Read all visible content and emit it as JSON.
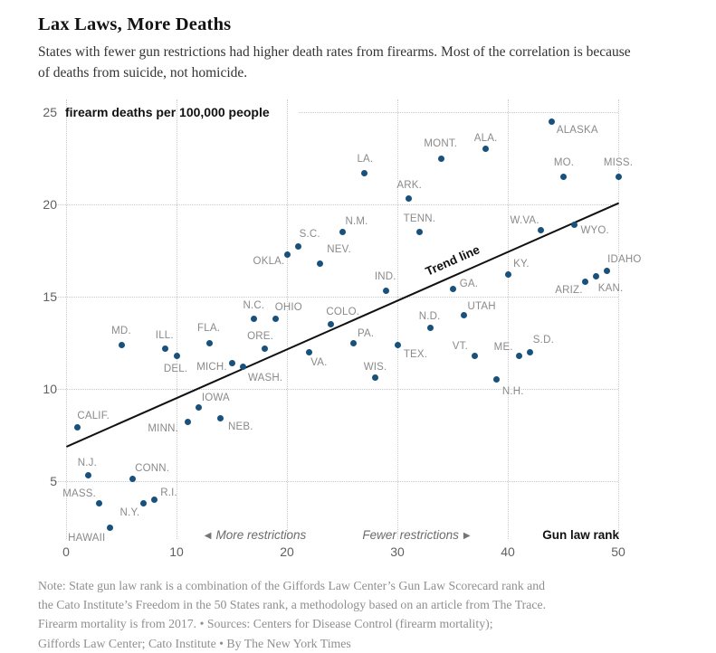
{
  "header": {
    "title": "Lax Laws, More Deaths",
    "subtitle": "States with fewer gun restrictions had higher death rates from firearms. Most of the correlation is because of deaths from suicide, not homicide."
  },
  "chart_data": {
    "type": "scatter",
    "title": "Lax Laws, More Deaths",
    "xlabel": "Gun law rank",
    "ylabel": "firearm deaths per 100,000 people",
    "xlim": [
      0,
      50
    ],
    "ylim": [
      1.9,
      25
    ],
    "x_ticks": [
      0,
      10,
      20,
      30,
      40,
      50
    ],
    "y_ticks": [
      5,
      10,
      15,
      20,
      25
    ],
    "grid": "dotted",
    "annotations": {
      "trend_label": "Trend line",
      "more_restrictions": "More restrictions",
      "fewer_restrictions": "Fewer restrictions",
      "left_arrow": "◀",
      "right_arrow": "▶"
    },
    "trendline": {
      "x": [
        0,
        50
      ],
      "y": [
        6.9,
        20.1
      ]
    },
    "points": [
      {
        "state": "CALIF.",
        "rank": 1,
        "rate": 7.9,
        "label_offset": [
          18,
          -13
        ]
      },
      {
        "state": "N.J.",
        "rank": 2,
        "rate": 5.3,
        "label_offset": [
          -1,
          -14
        ]
      },
      {
        "state": "MASS.",
        "rank": 3,
        "rate": 3.8,
        "label_offset": [
          -22,
          -10
        ]
      },
      {
        "state": "HAWAII",
        "rank": 4,
        "rate": 2.5,
        "label_offset": [
          -26,
          12
        ]
      },
      {
        "state": "MD.",
        "rank": 5,
        "rate": 12.4,
        "label_offset": [
          0,
          -15
        ]
      },
      {
        "state": "CONN.",
        "rank": 6,
        "rate": 5.1,
        "label_offset": [
          22,
          -12
        ]
      },
      {
        "state": "N.Y.",
        "rank": 7,
        "rate": 3.8,
        "label_offset": [
          -15,
          11
        ]
      },
      {
        "state": "R.I.",
        "rank": 8,
        "rate": 4.0,
        "label_offset": [
          16,
          -7
        ]
      },
      {
        "state": "ILL.",
        "rank": 9,
        "rate": 12.2,
        "label_offset": [
          -1,
          -14
        ]
      },
      {
        "state": "DEL.",
        "rank": 10,
        "rate": 11.8,
        "label_offset": [
          -1,
          15
        ]
      },
      {
        "state": "MINN.",
        "rank": 11,
        "rate": 8.2,
        "label_offset": [
          -27,
          7
        ]
      },
      {
        "state": "IOWA",
        "rank": 12,
        "rate": 9.0,
        "label_offset": [
          19,
          -10
        ]
      },
      {
        "state": "FLA.",
        "rank": 13,
        "rate": 12.5,
        "label_offset": [
          -1,
          -16
        ]
      },
      {
        "state": "NEB.",
        "rank": 14,
        "rate": 8.4,
        "label_offset": [
          22,
          9
        ]
      },
      {
        "state": "MICH.",
        "rank": 15,
        "rate": 11.4,
        "label_offset": [
          -22,
          5
        ]
      },
      {
        "state": "WASH.",
        "rank": 16,
        "rate": 11.2,
        "label_offset": [
          25,
          12
        ]
      },
      {
        "state": "N.C.",
        "rank": 17,
        "rate": 13.8,
        "label_offset": [
          0,
          -14
        ]
      },
      {
        "state": "ORE.",
        "rank": 18,
        "rate": 12.2,
        "label_offset": [
          -5,
          -13
        ]
      },
      {
        "state": "OHIO",
        "rank": 19,
        "rate": 13.8,
        "label_offset": [
          14,
          -12
        ]
      },
      {
        "state": "OKLA.",
        "rank": 20,
        "rate": 17.3,
        "label_offset": [
          -20,
          8
        ]
      },
      {
        "state": "S.C.",
        "rank": 21,
        "rate": 17.7,
        "label_offset": [
          13,
          -14
        ]
      },
      {
        "state": "VA.",
        "rank": 22,
        "rate": 12.0,
        "label_offset": [
          11,
          12
        ]
      },
      {
        "state": "NEV.",
        "rank": 23,
        "rate": 16.8,
        "label_offset": [
          21,
          -15
        ]
      },
      {
        "state": "COLO.",
        "rank": 24,
        "rate": 13.5,
        "label_offset": [
          13,
          -14
        ]
      },
      {
        "state": "N.M.",
        "rank": 25,
        "rate": 18.5,
        "label_offset": [
          16,
          -12
        ]
      },
      {
        "state": "PA.",
        "rank": 26,
        "rate": 12.5,
        "label_offset": [
          14,
          -10
        ]
      },
      {
        "state": "LA.",
        "rank": 27,
        "rate": 21.7,
        "label_offset": [
          1,
          -15
        ]
      },
      {
        "state": "WIS.",
        "rank": 28,
        "rate": 10.6,
        "label_offset": [
          0,
          -12
        ]
      },
      {
        "state": "IND.",
        "rank": 29,
        "rate": 15.3,
        "label_offset": [
          -1,
          -16
        ]
      },
      {
        "state": "TEX.",
        "rank": 30,
        "rate": 12.4,
        "label_offset": [
          20,
          11
        ]
      },
      {
        "state": "ARK.",
        "rank": 31,
        "rate": 20.3,
        "label_offset": [
          1,
          -15
        ]
      },
      {
        "state": "TENN.",
        "rank": 32,
        "rate": 18.5,
        "label_offset": [
          0,
          -15
        ]
      },
      {
        "state": "N.D.",
        "rank": 33,
        "rate": 13.3,
        "label_offset": [
          -1,
          -13
        ]
      },
      {
        "state": "MONT.",
        "rank": 34,
        "rate": 22.5,
        "label_offset": [
          -1,
          -16
        ]
      },
      {
        "state": "GA.",
        "rank": 35,
        "rate": 15.4,
        "label_offset": [
          18,
          -6
        ]
      },
      {
        "state": "UTAH",
        "rank": 36,
        "rate": 14.0,
        "label_offset": [
          20,
          -9
        ]
      },
      {
        "state": "VT.",
        "rank": 37,
        "rate": 11.8,
        "label_offset": [
          -16,
          -10
        ]
      },
      {
        "state": "ALA.",
        "rank": 38,
        "rate": 23.0,
        "label_offset": [
          0,
          -12
        ]
      },
      {
        "state": "N.H.",
        "rank": 39,
        "rate": 10.5,
        "label_offset": [
          18,
          13
        ]
      },
      {
        "state": "KY.",
        "rank": 40,
        "rate": 16.2,
        "label_offset": [
          15,
          -12
        ]
      },
      {
        "state": "ME.",
        "rank": 41,
        "rate": 11.8,
        "label_offset": [
          -17,
          -9
        ]
      },
      {
        "state": "S.D.",
        "rank": 42,
        "rate": 12.0,
        "label_offset": [
          15,
          -13
        ]
      },
      {
        "state": "W.VA.",
        "rank": 43,
        "rate": 18.6,
        "label_offset": [
          -18,
          -11
        ]
      },
      {
        "state": "ALASKA",
        "rank": 44,
        "rate": 24.5,
        "label_offset": [
          28,
          10
        ]
      },
      {
        "state": "MO.",
        "rank": 45,
        "rate": 21.5,
        "label_offset": [
          1,
          -15
        ]
      },
      {
        "state": "WYO.",
        "rank": 46,
        "rate": 18.9,
        "label_offset": [
          23,
          7
        ]
      },
      {
        "state": "ARIZ.",
        "rank": 47,
        "rate": 15.8,
        "label_offset": [
          -18,
          9
        ]
      },
      {
        "state": "KAN.",
        "rank": 48,
        "rate": 16.1,
        "label_offset": [
          16,
          13
        ]
      },
      {
        "state": "IDAHO",
        "rank": 49,
        "rate": 16.4,
        "label_offset": [
          19,
          -12
        ]
      },
      {
        "state": "MISS.",
        "rank": 50,
        "rate": 21.5,
        "label_offset": [
          0,
          -15
        ]
      }
    ]
  },
  "colors": {
    "dot": "#17517c",
    "trend": "#111111",
    "grid": "#c9c9c9",
    "state_label": "#8a8a8a",
    "tick_label": "#616161",
    "annotation": "#6b6b6b",
    "title": "#121212",
    "subtitle": "#333333",
    "footer": "#8f8f8f"
  },
  "footer": {
    "lines": [
      "Note: State gun law rank is a combination of the Giffords Law Center’s Gun Law Scorecard rank and",
      "the Cato Institute’s Freedom in the 50 States rank, a methodology based on an article from The Trace.",
      "Firearm mortality is from 2017.  •  Sources: Centers for Disease Control (firearm mortality);",
      "Giffords Law Center; Cato Institute  •  By The New York Times"
    ]
  }
}
